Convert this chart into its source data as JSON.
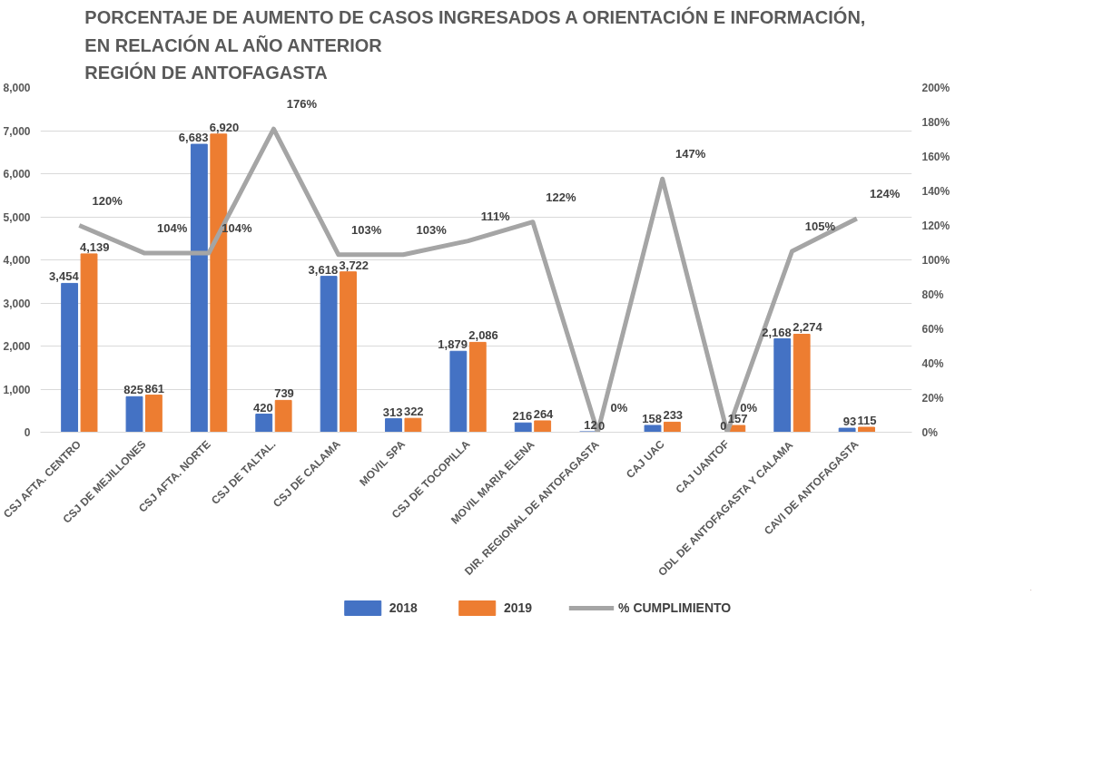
{
  "chart_data": {
    "type": "bar",
    "title": "PORCENTAJE DE AUMENTO DE CASOS INGRESADOS A ORIENTACIÓN E INFORMACIÓN,\nEN RELACIÓN AL AÑO ANTERIOR\nREGIÓN DE ANTOFAGASTA",
    "categories": [
      "CSJ AFTA. CENTRO",
      "CSJ DE MEJILLONES",
      "CSJ AFTA. NORTE",
      "CSJ DE TALTAL.",
      "CSJ DE CALAMA",
      "MOVIL SPA",
      "CSJ DE TOCOPILLA",
      "MOVIL MARIA ELENA",
      "DIR. REGIONAL DE ANTOFAGASTA",
      "CAJ UAC",
      "CAJ UANTOF",
      "ODL DE ANTOFAGASTA Y CALAMA",
      "CAVI DE ANTOFAGASTA"
    ],
    "series": [
      {
        "name": "2018",
        "color": "#4472c4",
        "values": [
          3454,
          825,
          6683,
          420,
          3618,
          313,
          1879,
          216,
          12,
          158,
          0,
          2168,
          93
        ],
        "value_labels": [
          "3,454",
          "825",
          "6,683",
          "420",
          "3,618",
          "313",
          "1,879",
          "216",
          "12",
          "158",
          "0",
          "2,168",
          "93"
        ]
      },
      {
        "name": "2019",
        "color": "#ed7d31",
        "values": [
          4139,
          861,
          6920,
          739,
          3722,
          322,
          2086,
          264,
          0,
          233,
          157,
          2274,
          115
        ],
        "value_labels": [
          "4,139",
          "861",
          "6,920",
          "739",
          "3,722",
          "322",
          "2,086",
          "264",
          "0",
          "233",
          "157",
          "2,274",
          "115"
        ]
      },
      {
        "name": "% CUMPLIMIENTO",
        "type": "line",
        "axis": "y2",
        "color": "#a5a5a5",
        "values": [
          120,
          104,
          104,
          176,
          103,
          103,
          111,
          122,
          0,
          147,
          0,
          105,
          124
        ],
        "value_labels": [
          "120%",
          "104%",
          "104%",
          "176%",
          "103%",
          "103%",
          "111%",
          "122%",
          "0%",
          "147%",
          "0%",
          "105%",
          "124%"
        ]
      }
    ],
    "ylim": [
      0,
      8000
    ],
    "yticks": [
      0,
      {
        "value": 1000,
        "label": "1,000"
      },
      {
        "value": 2000,
        "label": "2,000"
      },
      {
        "value": 3000,
        "label": "3,000"
      },
      {
        "value": 4000,
        "label": "4,000"
      },
      {
        "value": 5000,
        "label": "5,000"
      },
      {
        "value": 6000,
        "label": "6,000"
      },
      {
        "value": 7000,
        "label": "7,000"
      },
      {
        "value": 8000,
        "label": "8,000"
      }
    ],
    "y2lim": [
      0,
      200
    ],
    "y2ticks": [
      {
        "value": 0,
        "label": "0%"
      },
      {
        "value": 20,
        "label": "20%"
      },
      {
        "value": 40,
        "label": "40%"
      },
      {
        "value": 60,
        "label": "60%"
      },
      {
        "value": 80,
        "label": "80%"
      },
      {
        "value": 100,
        "label": "100%"
      },
      {
        "value": 120,
        "label": "120%"
      },
      {
        "value": 140,
        "label": "140%"
      },
      {
        "value": 160,
        "label": "160%"
      },
      {
        "value": 180,
        "label": "180%"
      },
      {
        "value": 200,
        "label": "200%"
      }
    ],
    "data_labels": true,
    "grid": "y",
    "legend": "bottom"
  }
}
